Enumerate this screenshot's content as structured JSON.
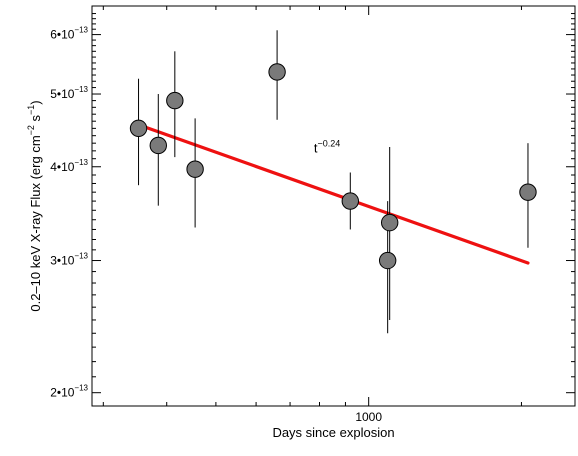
{
  "chart_data": {
    "type": "scatter",
    "xlabel": "Days since explosion",
    "ylabel": "0.2–10 keV X-ray Flux (erg cm",
    "ylabel_exp1": "−2",
    "ylabel_mid": " s",
    "ylabel_exp2": "−1",
    "ylabel_end": ")",
    "x_scale": "log",
    "y_scale": "log",
    "xlim": [
      285,
      2550
    ],
    "ylim": [
      1.92e-13,
      6.55e-13
    ],
    "x_ticks": [
      {
        "value": 1000,
        "label": "1000"
      }
    ],
    "y_ticks": [
      {
        "value": 2e-13,
        "base": "2•10",
        "exp": "−13"
      },
      {
        "value": 3e-13,
        "base": "3•10",
        "exp": "−13"
      },
      {
        "value": 4e-13,
        "base": "4•10",
        "exp": "−13"
      },
      {
        "value": 5e-13,
        "base": "5•10",
        "exp": "−13"
      },
      {
        "value": 6e-13,
        "base": "6•10",
        "exp": "−13"
      }
    ],
    "points": [
      {
        "x": 352,
        "y": 4.5e-13,
        "y_low": 3.78e-13,
        "y_high": 5.24e-13
      },
      {
        "x": 385,
        "y": 4.27e-13,
        "y_low": 3.55e-13,
        "y_high": 5e-13
      },
      {
        "x": 415,
        "y": 4.9e-13,
        "y_low": 4.12e-13,
        "y_high": 5.7e-13
      },
      {
        "x": 455,
        "y": 3.97e-13,
        "y_low": 3.32e-13,
        "y_high": 4.64e-13
      },
      {
        "x": 660,
        "y": 5.35e-13,
        "y_low": 4.62e-13,
        "y_high": 6.08e-13
      },
      {
        "x": 920,
        "y": 3.6e-13,
        "y_low": 3.3e-13,
        "y_high": 3.93e-13
      },
      {
        "x": 1100,
        "y": 3.37e-13,
        "y_low": 2.5e-13,
        "y_high": 4.25e-13
      },
      {
        "x": 1090,
        "y": 3e-13,
        "y_low": 2.4e-13,
        "y_high": 3.6e-13
      },
      {
        "x": 2060,
        "y": 3.7e-13,
        "y_low": 3.12e-13,
        "y_high": 4.3e-13
      }
    ],
    "fit": {
      "x_start": 352,
      "x_end": 2060,
      "y_start": 4.55e-13,
      "exponent": -0.24,
      "label_base": "t",
      "label_exp": "−0.24",
      "label_at": {
        "x": 780,
        "y": 4.18e-13
      },
      "color": "#ee1111"
    },
    "marker_fill": "#7a7a7a",
    "marker_edge": "#000000",
    "grid": false
  }
}
